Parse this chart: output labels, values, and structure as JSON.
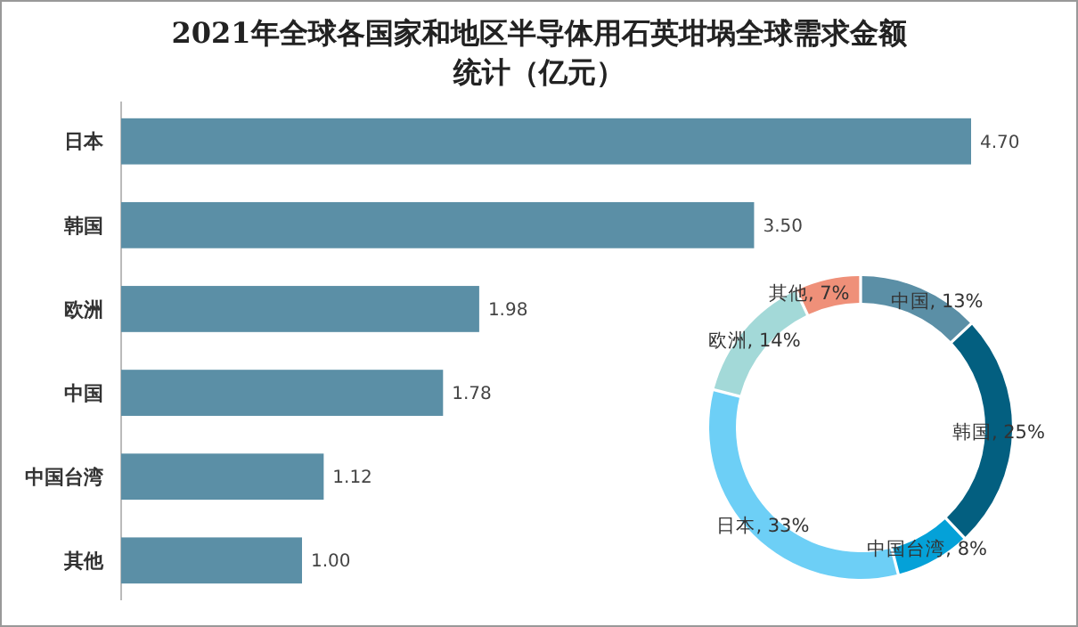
{
  "chart_data": [
    {
      "type": "bar",
      "orientation": "horizontal",
      "title": "2021年全球各国家和地区半导体用石英坩埚全球需求金额统计（亿元）",
      "categories": [
        "日本",
        "韩国",
        "欧洲",
        "中国",
        "中国台湾",
        "其他"
      ],
      "values": [
        4.7,
        3.5,
        1.98,
        1.78,
        1.12,
        1.0
      ],
      "value_labels": [
        "4.70",
        "3.50",
        "1.98",
        "1.78",
        "1.12",
        "1.00"
      ],
      "color": "#5b8fa6"
    },
    {
      "type": "donut",
      "categories": [
        "中国",
        "韩国",
        "中国台湾",
        "日本",
        "欧洲",
        "其他"
      ],
      "values": [
        13,
        25,
        8,
        33,
        14,
        7
      ],
      "value_labels": [
        "13%",
        "25%",
        "8%",
        "33%",
        "14%",
        "7%"
      ],
      "colors": [
        "#5b8fa6",
        "#035f80",
        "#04a1d8",
        "#6dcff6",
        "#a3d9d8",
        "#ef9079"
      ]
    }
  ]
}
